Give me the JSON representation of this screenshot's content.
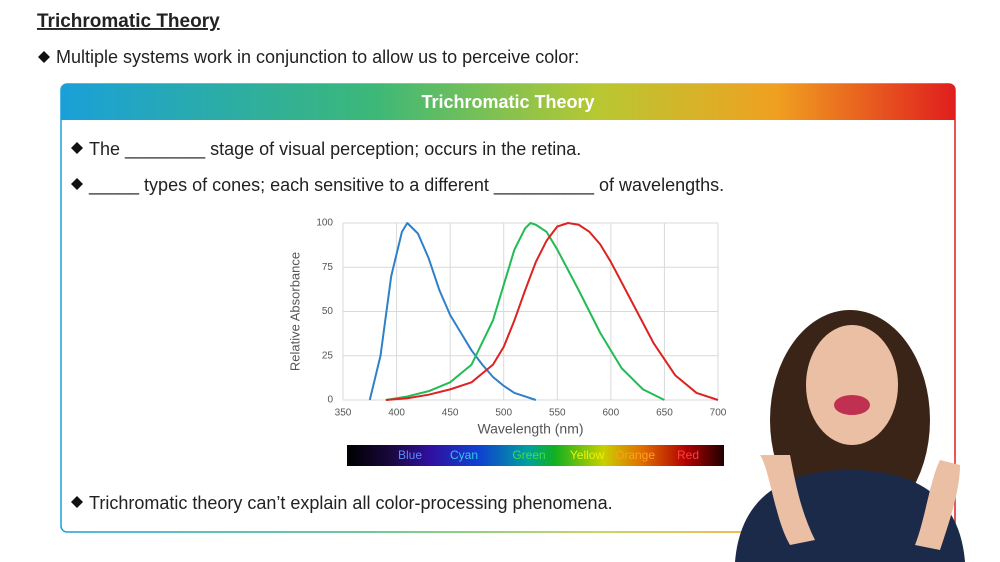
{
  "slide": {
    "heading": "Trichromatic Theory",
    "intro": "Multiple systems work in conjunction to allow us to perceive color:",
    "box_title": "Trichromatic Theory",
    "bullets": [
      "The ________ stage of visual perception; occurs in the retina.",
      "_____ types of cones; each sensitive to a different __________ of wavelengths.",
      "Trichromatic theory can’t explain all color-processing phenomena."
    ]
  },
  "chart_data": {
    "type": "line",
    "x_label": "Wavelength (nm)",
    "y_label": "Relative Absorbance",
    "xlim": [
      350,
      700
    ],
    "xticks": [
      350,
      400,
      450,
      500,
      550,
      600,
      650,
      700
    ],
    "ylim": [
      0,
      100
    ],
    "yticks": [
      0,
      25,
      50,
      75,
      100
    ],
    "grid": true,
    "series": [
      {
        "color": "#2f80c8",
        "x": [
          375,
          385,
          395,
          405,
          410,
          420,
          430,
          440,
          450,
          460,
          470,
          480,
          490,
          500,
          510,
          520,
          530
        ],
        "values": [
          0,
          25,
          70,
          95,
          100,
          94,
          80,
          62,
          48,
          38,
          28,
          20,
          13,
          8,
          4,
          2,
          0
        ]
      },
      {
        "color": "#22bb55",
        "x": [
          390,
          410,
          430,
          450,
          470,
          490,
          500,
          510,
          520,
          525,
          530,
          540,
          550,
          570,
          590,
          610,
          630,
          650
        ],
        "values": [
          0,
          2,
          5,
          10,
          20,
          45,
          65,
          85,
          97,
          100,
          99,
          95,
          85,
          62,
          38,
          18,
          6,
          0
        ]
      },
      {
        "color": "#dd2222",
        "x": [
          390,
          410,
          430,
          450,
          470,
          490,
          500,
          510,
          520,
          530,
          540,
          550,
          560,
          570,
          580,
          590,
          600,
          620,
          640,
          660,
          680,
          700
        ],
        "values": [
          0,
          1,
          3,
          6,
          10,
          20,
          30,
          45,
          62,
          78,
          90,
          98,
          100,
          99,
          95,
          88,
          78,
          55,
          32,
          14,
          4,
          0
        ]
      }
    ],
    "spectrum_labels": [
      "Blue",
      "Cyan",
      "Green",
      "Yellow",
      "Orange",
      "Red"
    ]
  }
}
